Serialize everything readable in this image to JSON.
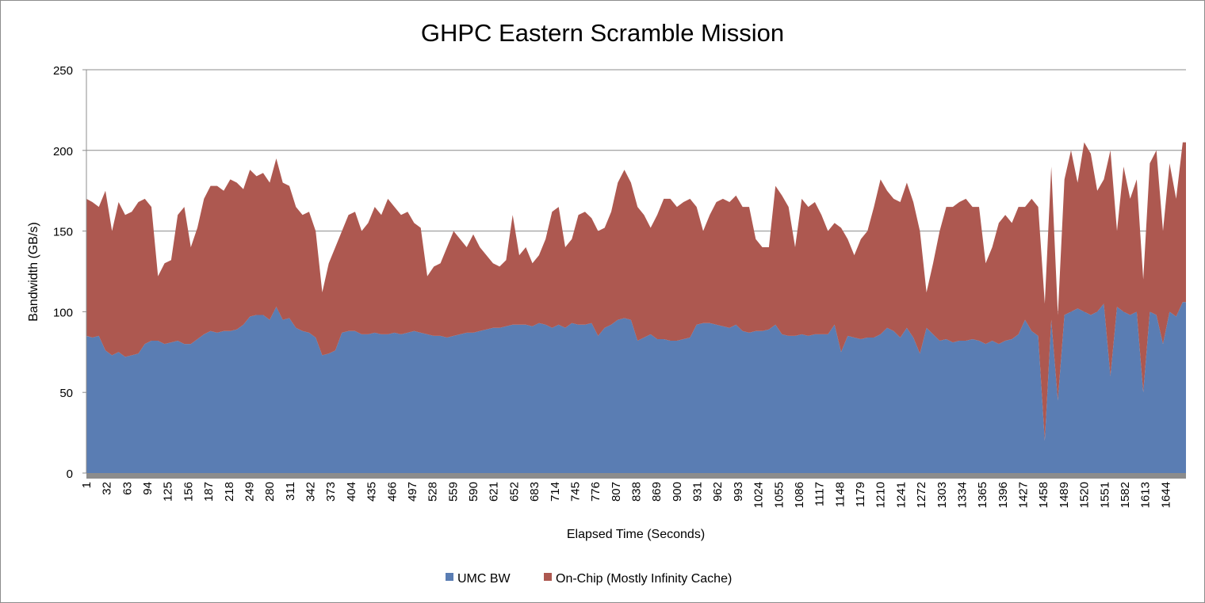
{
  "chart_data": {
    "type": "area",
    "stacked": true,
    "title": "GHPC Eastern Scramble Mission",
    "xlabel": "Elapsed Time (Seconds)",
    "ylabel": "Bandwidth (GB/s)",
    "ylim": [
      0,
      250
    ],
    "xlim": [
      1,
      1675
    ],
    "y_ticks": [
      0,
      50,
      100,
      150,
      200,
      250
    ],
    "x_ticks": [
      1,
      32,
      63,
      94,
      125,
      156,
      187,
      218,
      249,
      280,
      311,
      342,
      373,
      404,
      435,
      466,
      497,
      528,
      559,
      590,
      621,
      652,
      683,
      714,
      745,
      776,
      807,
      838,
      869,
      900,
      931,
      962,
      993,
      1024,
      1055,
      1086,
      1117,
      1148,
      1179,
      1210,
      1241,
      1272,
      1303,
      1334,
      1365,
      1396,
      1427,
      1458,
      1489,
      1520,
      1551,
      1582,
      1613,
      1644
    ],
    "grid": "horizontal",
    "legend_position": "bottom",
    "x": [
      1,
      10,
      20,
      30,
      40,
      50,
      60,
      70,
      80,
      90,
      100,
      110,
      120,
      130,
      140,
      150,
      160,
      170,
      180,
      190,
      200,
      210,
      220,
      230,
      240,
      250,
      260,
      270,
      280,
      290,
      300,
      310,
      320,
      330,
      340,
      350,
      360,
      370,
      380,
      390,
      400,
      410,
      420,
      430,
      440,
      450,
      460,
      470,
      480,
      490,
      500,
      510,
      520,
      530,
      540,
      550,
      560,
      570,
      580,
      590,
      600,
      610,
      620,
      630,
      640,
      650,
      660,
      670,
      680,
      690,
      700,
      710,
      720,
      730,
      740,
      750,
      760,
      770,
      780,
      790,
      800,
      810,
      820,
      830,
      840,
      850,
      860,
      870,
      880,
      890,
      900,
      910,
      920,
      930,
      940,
      950,
      960,
      970,
      980,
      990,
      1000,
      1010,
      1020,
      1030,
      1040,
      1050,
      1060,
      1070,
      1080,
      1090,
      1100,
      1110,
      1120,
      1130,
      1140,
      1150,
      1160,
      1170,
      1180,
      1190,
      1200,
      1210,
      1220,
      1230,
      1240,
      1250,
      1260,
      1270,
      1280,
      1290,
      1300,
      1310,
      1320,
      1330,
      1340,
      1350,
      1360,
      1370,
      1380,
      1390,
      1400,
      1410,
      1420,
      1430,
      1440,
      1450,
      1460,
      1470,
      1480,
      1490,
      1500,
      1510,
      1520,
      1530,
      1540,
      1550,
      1560,
      1570,
      1580,
      1590,
      1600,
      1610,
      1620,
      1630,
      1640,
      1650,
      1660,
      1670
    ],
    "series": [
      {
        "name": "UMC BW",
        "color": "#5a7db3",
        "values": [
          85,
          84,
          85,
          76,
          73,
          75,
          72,
          73,
          74,
          80,
          82,
          82,
          80,
          81,
          82,
          80,
          80,
          83,
          86,
          88,
          87,
          88,
          88,
          89,
          92,
          97,
          98,
          98,
          95,
          103,
          95,
          96,
          90,
          88,
          87,
          84,
          73,
          74,
          76,
          87,
          88,
          88,
          86,
          86,
          87,
          86,
          86,
          87,
          86,
          87,
          88,
          87,
          86,
          85,
          85,
          84,
          85,
          86,
          87,
          87,
          88,
          89,
          90,
          90,
          91,
          92,
          92,
          92,
          91,
          93,
          92,
          90,
          92,
          90,
          93,
          92,
          92,
          93,
          85,
          90,
          92,
          95,
          96,
          95,
          82,
          84,
          86,
          83,
          83,
          82,
          82,
          83,
          84,
          92,
          93,
          93,
          92,
          91,
          90,
          92,
          88,
          87,
          88,
          88,
          89,
          92,
          86,
          85,
          85,
          86,
          85,
          86,
          86,
          86,
          92,
          75,
          85,
          84,
          83,
          84,
          84,
          86,
          90,
          88,
          84,
          90,
          84,
          74,
          90,
          86,
          82,
          83,
          81,
          82,
          82,
          83,
          82,
          80,
          82,
          80,
          82,
          83,
          86,
          95,
          88,
          85,
          20,
          95,
          45,
          98,
          100,
          102,
          100,
          98,
          100,
          105,
          60,
          103,
          100,
          98,
          100,
          50,
          100,
          98,
          80,
          100,
          97,
          106
        ]
      },
      {
        "name": "On-Chip (Mostly Infinity Cache)",
        "color": "#ad5850",
        "values": [
          85,
          84,
          80,
          99,
          77,
          93,
          88,
          89,
          94,
          90,
          83,
          40,
          50,
          51,
          78,
          85,
          60,
          69,
          84,
          90,
          91,
          87,
          94,
          91,
          84,
          91,
          86,
          88,
          85,
          92,
          85,
          82,
          75,
          72,
          75,
          66,
          39,
          56,
          64,
          63,
          72,
          74,
          64,
          69,
          78,
          74,
          84,
          78,
          74,
          75,
          67,
          65,
          36,
          43,
          45,
          56,
          65,
          59,
          53,
          61,
          52,
          46,
          40,
          38,
          41,
          68,
          43,
          48,
          39,
          42,
          53,
          72,
          73,
          50,
          52,
          68,
          70,
          65,
          65,
          62,
          70,
          85,
          92,
          85,
          83,
          76,
          66,
          77,
          87,
          88,
          83,
          85,
          86,
          73,
          57,
          67,
          76,
          79,
          78,
          80,
          77,
          78,
          57,
          52,
          51,
          86,
          86,
          80,
          55,
          84,
          80,
          82,
          74,
          64,
          63,
          77,
          60,
          51,
          62,
          66,
          81,
          96,
          85,
          82,
          84,
          90,
          84,
          76,
          22,
          44,
          68,
          82,
          84,
          86,
          88,
          82,
          83,
          50,
          58,
          75,
          78,
          72,
          79,
          70,
          82,
          80,
          85,
          95,
          53,
          84,
          100,
          78,
          105,
          100,
          75,
          77,
          140,
          47,
          90,
          72,
          82,
          70,
          92,
          102,
          70,
          92,
          73,
          99
        ]
      }
    ]
  }
}
